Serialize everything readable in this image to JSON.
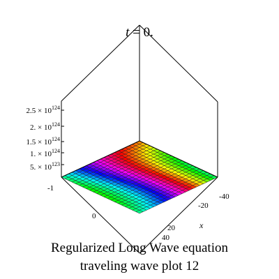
{
  "chart_data": {
    "type": "surface3d",
    "title": "t = 0.",
    "caption": [
      "Regularized Long Wave equation",
      "traveling wave plot 12"
    ],
    "x_axis": {
      "label": "x",
      "ticks": [
        "-40",
        "-20",
        "20",
        "40"
      ]
    },
    "y_axis": {
      "ticks": [
        "-1",
        "0"
      ]
    },
    "z_axis": {
      "ticks": [
        "2.5 × 10^124",
        "2. × 10^124",
        "1.5 × 10^124",
        "1. × 10^124",
        "5. × 10^123"
      ]
    },
    "colormap": "rainbow",
    "grid": true
  }
}
